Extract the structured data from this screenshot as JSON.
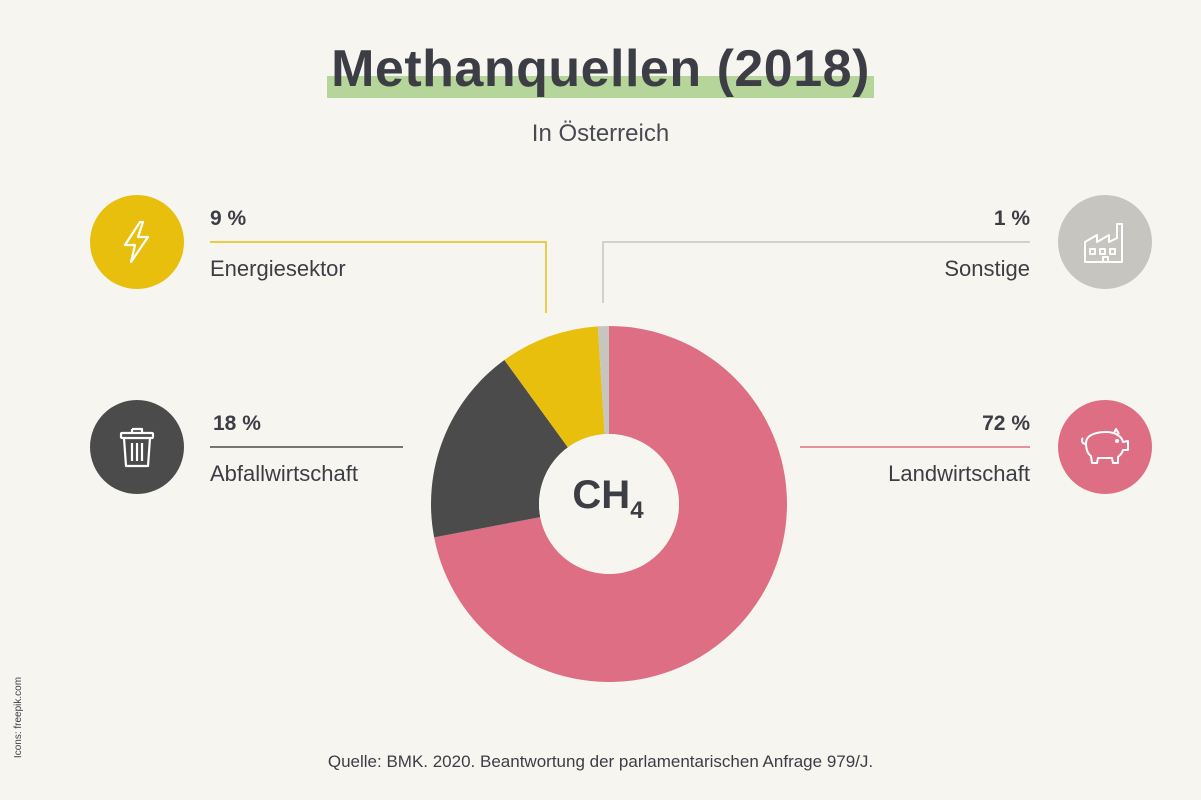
{
  "header": {
    "title": "Methanquellen (2018)",
    "subtitle": "In Österreich"
  },
  "center": {
    "formula": "CH",
    "subscript": "4"
  },
  "colors": {
    "landwirtschaft": "#dd6e84",
    "abfallwirtschaft": "#4b4b4b",
    "energiesektor": "#e8bf0c",
    "sonstige": "#c6c5c0",
    "highlight": "#b5d59a"
  },
  "icons": {
    "energiesektor": "lightning-icon",
    "sonstige": "factory-icon",
    "abfallwirtschaft": "trash-can-icon",
    "landwirtschaft": "pig-icon"
  },
  "labels": {
    "energiesektor": {
      "pct": "9 %",
      "name": "Energiesektor"
    },
    "sonstige": {
      "pct": "1 %",
      "name": "Sonstige"
    },
    "abfallwirtschaft": {
      "pct": "18 %",
      "name": "Abfallwirtschaft"
    },
    "landwirtschaft": {
      "pct": "72 %",
      "name": "Landwirtschaft"
    }
  },
  "chart_data": {
    "type": "pie",
    "title": "Methanquellen (2018)",
    "subtitle": "In Österreich",
    "donut": true,
    "categories": [
      "Landwirtschaft",
      "Abfallwirtschaft",
      "Energiesektor",
      "Sonstige"
    ],
    "values": [
      72,
      18,
      9,
      1
    ],
    "unit": "%",
    "colors": [
      "#dd6e84",
      "#4b4b4b",
      "#e8bf0c",
      "#c6c5c0"
    ]
  },
  "footer": {
    "source": "Quelle: BMK. 2020. Beantwortung der parlamentarischen Anfrage 979/J.",
    "credit": "Icons: freepik.com"
  }
}
